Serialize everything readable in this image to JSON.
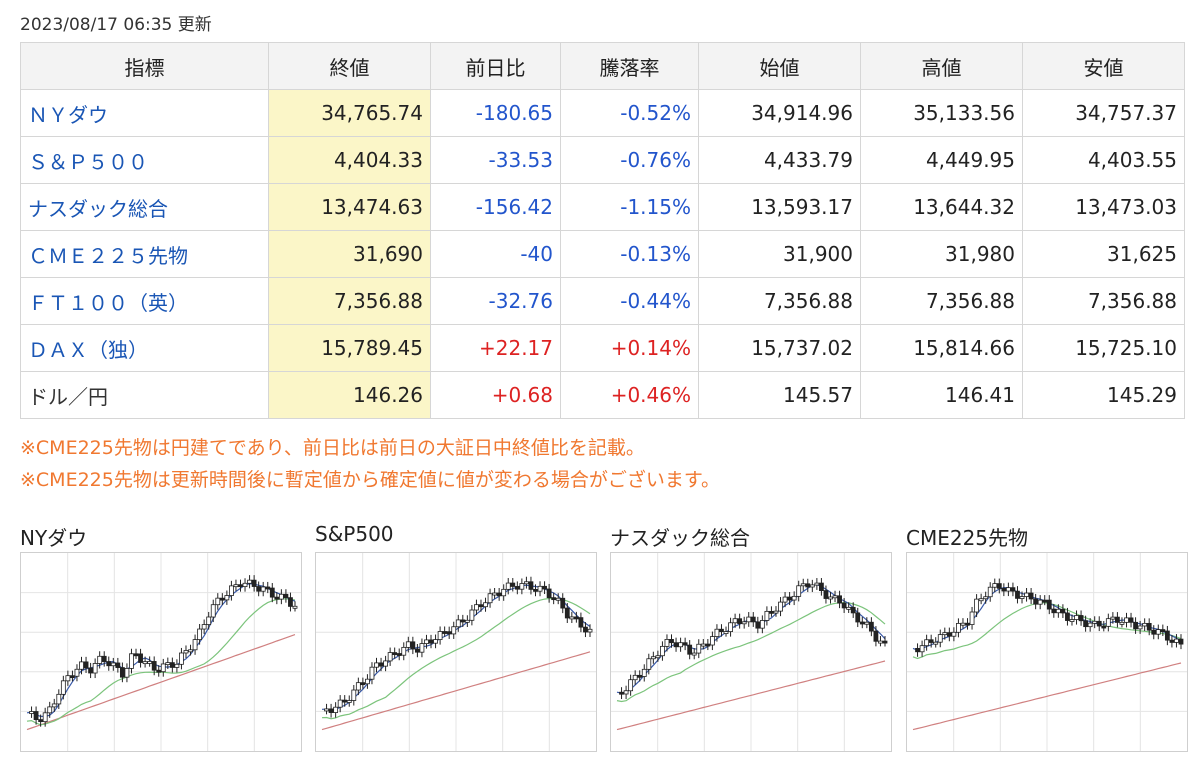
{
  "updated": "2023/08/17 06:35 更新",
  "table": {
    "headers": [
      "指標",
      "終値",
      "前日比",
      "騰落率",
      "始値",
      "高値",
      "安値"
    ],
    "rows": [
      {
        "name": "ＮＹダウ",
        "link": true,
        "close": "34,765.74",
        "change": "-180.65",
        "pct": "-0.52%",
        "open": "34,914.96",
        "high": "35,133.56",
        "low": "34,757.37",
        "dir": "neg"
      },
      {
        "name": "Ｓ＆Ｐ５００",
        "link": true,
        "close": "4,404.33",
        "change": "-33.53",
        "pct": "-0.76%",
        "open": "4,433.79",
        "high": "4,449.95",
        "low": "4,403.55",
        "dir": "neg"
      },
      {
        "name": "ナスダック総合",
        "link": true,
        "close": "13,474.63",
        "change": "-156.42",
        "pct": "-1.15%",
        "open": "13,593.17",
        "high": "13,644.32",
        "low": "13,473.03",
        "dir": "neg"
      },
      {
        "name": "ＣＭＥ２２５先物",
        "link": true,
        "close": "31,690",
        "change": "-40",
        "pct": "-0.13%",
        "open": "31,900",
        "high": "31,980",
        "low": "31,625",
        "dir": "neg"
      },
      {
        "name": "ＦＴ１００（英）",
        "link": true,
        "close": "7,356.88",
        "change": "-32.76",
        "pct": "-0.44%",
        "open": "7,356.88",
        "high": "7,356.88",
        "low": "7,356.88",
        "dir": "neg"
      },
      {
        "name": "ＤＡＸ（独）",
        "link": true,
        "close": "15,789.45",
        "change": "+22.17",
        "pct": "+0.14%",
        "open": "15,737.02",
        "high": "15,814.66",
        "low": "15,725.10",
        "dir": "pos"
      },
      {
        "name": "ドル／円",
        "link": false,
        "close": "146.26",
        "change": "+0.68",
        "pct": "+0.46%",
        "open": "145.57",
        "high": "146.41",
        "low": "145.29",
        "dir": "pos"
      }
    ]
  },
  "notes": [
    "※CME225先物は円建てであり、前日比は前日の大証日中終値比を記載。",
    "※CME225先物は更新時間後に暫定値から確定値に値が変わる場合がございます。"
  ],
  "charts": [
    {
      "title": "NYダウ",
      "shape": [
        0.12,
        0.08,
        0.12,
        0.25,
        0.35,
        0.4,
        0.38,
        0.45,
        0.4,
        0.35,
        0.48,
        0.42,
        0.38,
        0.4,
        0.42,
        0.5,
        0.58,
        0.72,
        0.8,
        0.85,
        0.9,
        0.88,
        0.86,
        0.82,
        0.8,
        0.76
      ]
    },
    {
      "title": "S&P500",
      "shape": [
        0.12,
        0.15,
        0.18,
        0.25,
        0.32,
        0.4,
        0.44,
        0.48,
        0.52,
        0.5,
        0.55,
        0.58,
        0.62,
        0.66,
        0.72,
        0.78,
        0.82,
        0.86,
        0.88,
        0.88,
        0.86,
        0.84,
        0.78,
        0.7,
        0.65,
        0.6
      ]
    },
    {
      "title": "ナスダック総合",
      "shape": [
        0.22,
        0.28,
        0.35,
        0.42,
        0.5,
        0.55,
        0.52,
        0.48,
        0.52,
        0.58,
        0.62,
        0.66,
        0.68,
        0.64,
        0.7,
        0.76,
        0.8,
        0.86,
        0.9,
        0.85,
        0.8,
        0.78,
        0.7,
        0.66,
        0.58,
        0.52
      ]
    },
    {
      "title": "CME225先物",
      "shape": [
        0.5,
        0.52,
        0.56,
        0.58,
        0.62,
        0.66,
        0.78,
        0.85,
        0.88,
        0.84,
        0.82,
        0.8,
        0.78,
        0.74,
        0.7,
        0.68,
        0.66,
        0.64,
        0.66,
        0.68,
        0.66,
        0.64,
        0.62,
        0.6,
        0.56,
        0.52
      ]
    }
  ],
  "colors": {
    "link": "#1a56b5",
    "negative": "#2255cc",
    "positive": "#dd2222",
    "note": "#f07830",
    "close_bg": "#fbf6c8"
  }
}
